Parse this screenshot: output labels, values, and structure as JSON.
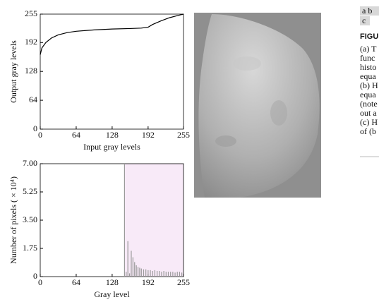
{
  "chart_data": [
    {
      "type": "line",
      "xlabel": "Input gray levels",
      "ylabel": "Output gray levels",
      "x": [
        0,
        3,
        10,
        20,
        32,
        48,
        64,
        96,
        128,
        160,
        180,
        192,
        200,
        215,
        230,
        245,
        255
      ],
      "series": [
        {
          "color": "#000000",
          "values": [
            165,
            180,
            192,
            202,
            209,
            214,
            217,
            220,
            222,
            223,
            224,
            226,
            232,
            240,
            247,
            252,
            255
          ]
        }
      ],
      "xlim": [
        0,
        255
      ],
      "ylim": [
        0,
        255
      ],
      "xticks": [
        0,
        64,
        128,
        192,
        255
      ],
      "yticks": [
        0,
        64,
        128,
        192,
        255
      ]
    },
    {
      "type": "bar",
      "xlabel": "Gray level",
      "ylabel": "Number of pixels ( × 10⁴)",
      "x": [
        150,
        153,
        156,
        159,
        162,
        165,
        168,
        171,
        174,
        177,
        180,
        184,
        188,
        192,
        196,
        200,
        204,
        208,
        212,
        216,
        220,
        224,
        228,
        232,
        236,
        240,
        244,
        248,
        252
      ],
      "values": [
        7.0,
        0.3,
        2.2,
        0.2,
        1.6,
        1.2,
        0.9,
        0.7,
        0.6,
        0.55,
        0.5,
        0.45,
        0.45,
        0.4,
        0.4,
        0.35,
        0.4,
        0.35,
        0.35,
        0.3,
        0.35,
        0.3,
        0.3,
        0.3,
        0.3,
        0.25,
        0.3,
        0.3,
        0.25
      ],
      "color": "#9a9a9a",
      "highlight": {
        "xlim": [
          150,
          255
        ],
        "color": "#f8eaf8"
      },
      "xlim": [
        0,
        255
      ],
      "ylim": [
        0,
        7
      ],
      "xticks": [
        0,
        64,
        128,
        192,
        255
      ],
      "yticks": [
        {
          "value": 7,
          "label": "7.00"
        },
        {
          "value": 5.25,
          "label": "5.25"
        },
        {
          "value": 3.5,
          "label": "3.50"
        },
        {
          "value": 1.75,
          "label": "1.75"
        },
        0
      ]
    }
  ],
  "panel_labels": {
    "row1": "a b",
    "row2": "c"
  },
  "caption": {
    "title": "FIGU",
    "lines": [
      "(a) T",
      "func",
      "histo",
      "equa",
      "(b) H",
      "equa",
      "(note",
      "out a",
      "(c) H",
      "of (b"
    ]
  }
}
